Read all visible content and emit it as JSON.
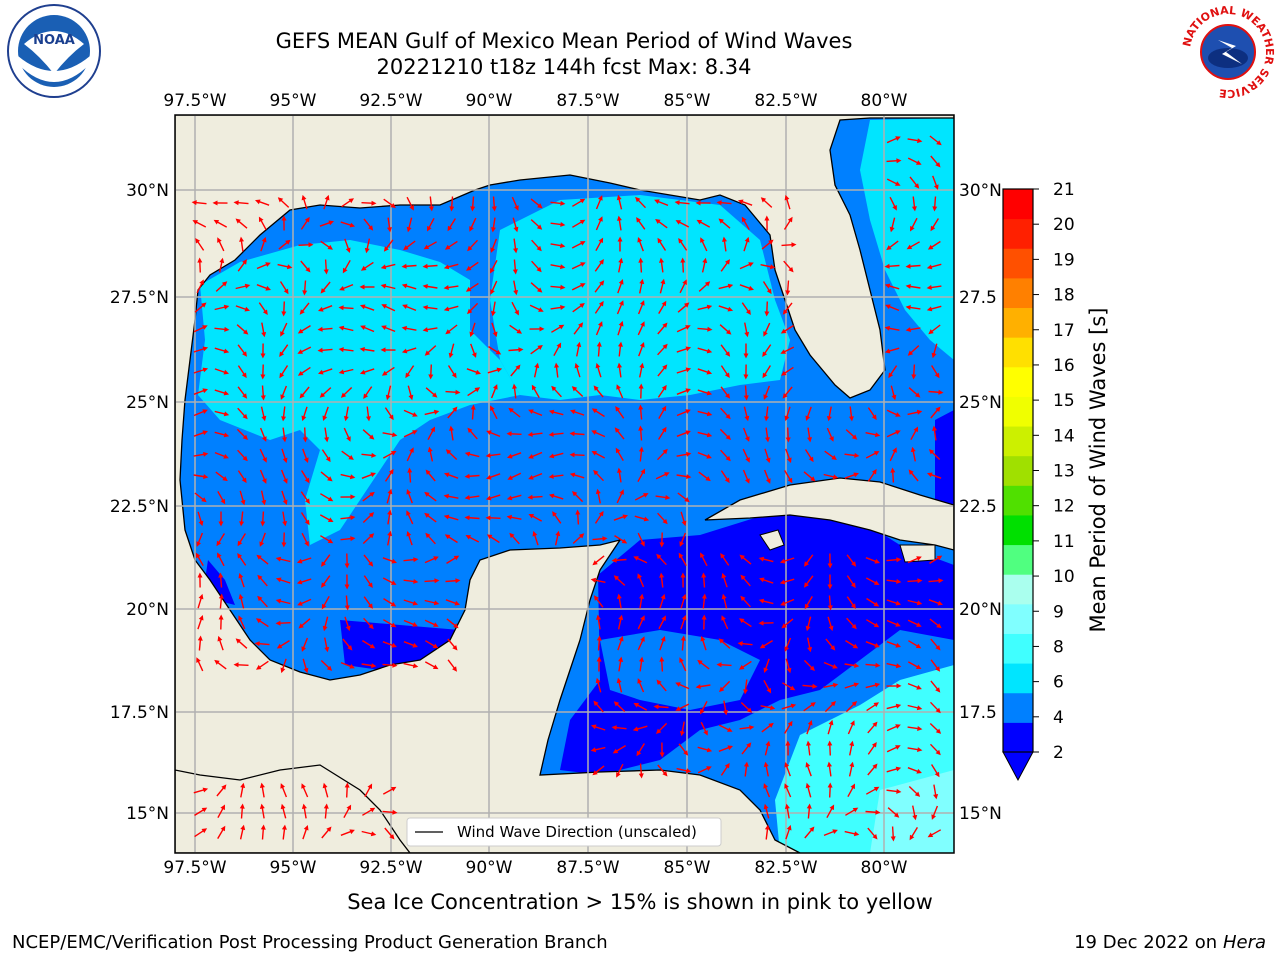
{
  "header": {
    "title_line1": "GEFS MEAN Gulf of Mexico Mean Period of Wind Waves",
    "title_line2": "20221210 t18z 144h fcst   Max: 8.34"
  },
  "logos": {
    "left": {
      "icon": "noaa-logo",
      "text": "NOAA"
    },
    "right": {
      "icon": "nws-logo",
      "ring_text": "NATIONAL WEATHER SERVICE"
    }
  },
  "map": {
    "lon_labels": [
      "97.5°W",
      "95°W",
      "92.5°W",
      "90°W",
      "87.5°W",
      "85°W",
      "82.5°W",
      "80°W"
    ],
    "lat_labels_left": [
      "30°N",
      "27.5°N",
      "25°N",
      "22.5°N",
      "20°N",
      "17.5°N",
      "15°N"
    ],
    "lat_labels_right": [
      "30°N",
      "27.5",
      "25°N",
      "22.5",
      "20°N",
      "17.5",
      "15°N"
    ],
    "legend_label": "Wind Wave Direction (unscaled)",
    "colors": {
      "land": "#efedde",
      "arrow": "#ff0000",
      "grid": "#b0b0b0"
    }
  },
  "colorbar": {
    "label": "Mean Period of Wind Waves [s]",
    "ticks": [
      "2",
      "4",
      "6",
      "8",
      "9",
      "10",
      "11",
      "12",
      "13",
      "14",
      "15",
      "16",
      "17",
      "18",
      "19",
      "20",
      "21"
    ],
    "colors": [
      "#0000ff",
      "#0080ff",
      "#00e5ff",
      "#40ffff",
      "#80ffff",
      "#aaffee",
      "#50ff80",
      "#00e000",
      "#50e000",
      "#a0e000",
      "#ccf000",
      "#f0ff00",
      "#ffff00",
      "#ffe000",
      "#ffb000",
      "#ff8000",
      "#ff5000",
      "#ff2000",
      "#ff0000"
    ]
  },
  "caption": "Sea Ice Concentration > 15% is shown in pink to yellow",
  "footer": {
    "left": "NCEP/EMC/Verification Post Processing Product Generation Branch",
    "right_prefix": "19 Dec 2022 on",
    "right_host": "Hera"
  }
}
